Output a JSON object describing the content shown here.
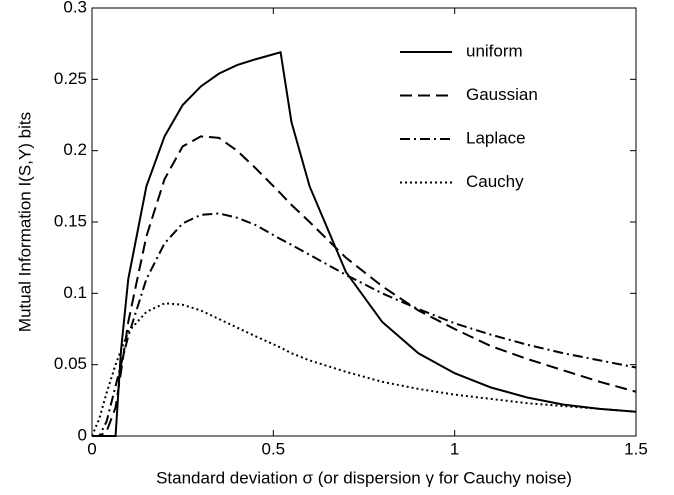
{
  "chart_data": {
    "type": "line",
    "xlabel": "Standard deviation σ (or dispersion γ for Cauchy noise)",
    "ylabel": "Mutual Information I(S,Y) bits",
    "x": [
      0,
      0.02,
      0.04,
      0.065,
      0.08,
      0.1,
      0.15,
      0.2,
      0.25,
      0.3,
      0.35,
      0.4,
      0.45,
      0.52,
      0.55,
      0.6,
      0.7,
      0.8,
      0.9,
      1.0,
      1.1,
      1.2,
      1.3,
      1.4,
      1.5
    ],
    "series": [
      {
        "name": "uniform",
        "color": "#000000",
        "linestyle": "solid",
        "values": [
          0,
          0,
          0,
          0,
          0.06,
          0.11,
          0.175,
          0.21,
          0.232,
          0.245,
          0.254,
          0.26,
          0.264,
          0.269,
          0.22,
          0.175,
          0.115,
          0.08,
          0.058,
          0.044,
          0.034,
          0.027,
          0.022,
          0.019,
          0.017
        ]
      },
      {
        "name": "Gaussian",
        "color": "#000000",
        "linestyle": "dashed",
        "values": [
          0,
          0,
          0.003,
          0.02,
          0.045,
          0.08,
          0.14,
          0.18,
          0.203,
          0.21,
          0.209,
          0.2,
          0.188,
          0.17,
          0.162,
          0.15,
          0.125,
          0.105,
          0.088,
          0.075,
          0.063,
          0.054,
          0.046,
          0.038,
          0.031
        ]
      },
      {
        "name": "Laplace",
        "color": "#000000",
        "linestyle": "dashdot",
        "values": [
          0,
          0,
          0.01,
          0.035,
          0.05,
          0.07,
          0.11,
          0.135,
          0.149,
          0.155,
          0.156,
          0.153,
          0.148,
          0.138,
          0.134,
          0.127,
          0.113,
          0.1,
          0.089,
          0.079,
          0.071,
          0.064,
          0.058,
          0.053,
          0.048
        ]
      },
      {
        "name": "Cauchy",
        "color": "#000000",
        "linestyle": "dotted",
        "values": [
          0,
          0.012,
          0.03,
          0.05,
          0.06,
          0.073,
          0.087,
          0.093,
          0.092,
          0.088,
          0.082,
          0.076,
          0.07,
          0.062,
          0.058,
          0.053,
          0.045,
          0.038,
          0.033,
          0.029,
          0.026,
          0.023,
          0.021,
          0.019,
          0.017
        ]
      }
    ],
    "xlim": [
      0,
      1.5
    ],
    "xticks": [
      0,
      0.5,
      1,
      1.5
    ],
    "ylim": [
      0,
      0.3
    ],
    "yticks": [
      0,
      0.05,
      0.1,
      0.15,
      0.2,
      0.25,
      0.3
    ],
    "legend": "upper right",
    "grid": false
  }
}
